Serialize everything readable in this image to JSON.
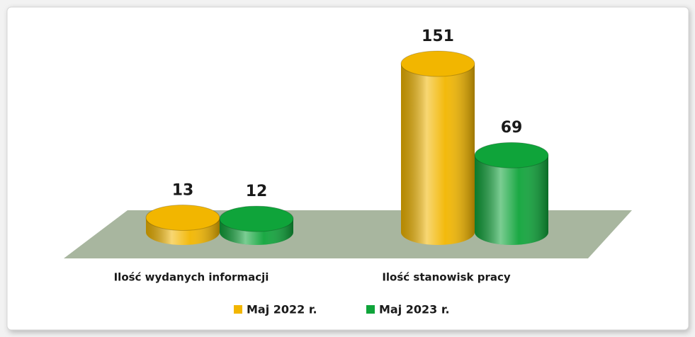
{
  "chart_data": {
    "type": "bar",
    "categories": [
      "Ilość wydanych informacji",
      "Ilość stanowisk pracy"
    ],
    "series": [
      {
        "name": "Maj 2022 r.",
        "color": "#f2b600",
        "values": [
          13,
          151
        ]
      },
      {
        "name": "Maj 2023 r.",
        "color": "#0fa43a",
        "values": [
          12,
          69
        ]
      }
    ]
  }
}
